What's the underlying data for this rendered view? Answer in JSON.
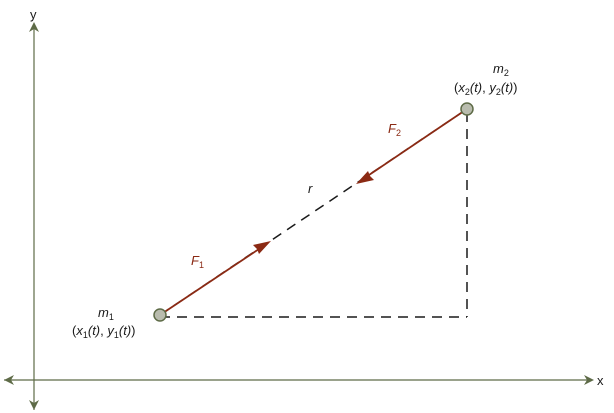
{
  "axes": {
    "x_label": "x",
    "y_label": "y"
  },
  "bodies": {
    "m1": {
      "name_base": "m",
      "name_sub": "1",
      "coord_open": "(",
      "coord_x": "x",
      "coord_x_sub": "1",
      "coord_x_arg": "(t)",
      "coord_sep": ", ",
      "coord_y": "y",
      "coord_y_sub": "1",
      "coord_y_arg": "(t)",
      "coord_close": ")"
    },
    "m2": {
      "name_base": "m",
      "name_sub": "2",
      "coord_open": "(",
      "coord_x": "x",
      "coord_x_sub": "2",
      "coord_x_arg": "(t)",
      "coord_sep": ", ",
      "coord_y": "y",
      "coord_y_sub": "2",
      "coord_y_arg": "(t)",
      "coord_close": ")"
    }
  },
  "forces": {
    "F1": {
      "base": "F",
      "sub": "1"
    },
    "F2": {
      "base": "F",
      "sub": "2"
    }
  },
  "distance_label": "r",
  "colors": {
    "axis": "#5e6b47",
    "force": "#8b2a14",
    "dash": "#1a1a1a",
    "body_fill": "#b9bcae",
    "body_stroke": "#5e6b47"
  }
}
